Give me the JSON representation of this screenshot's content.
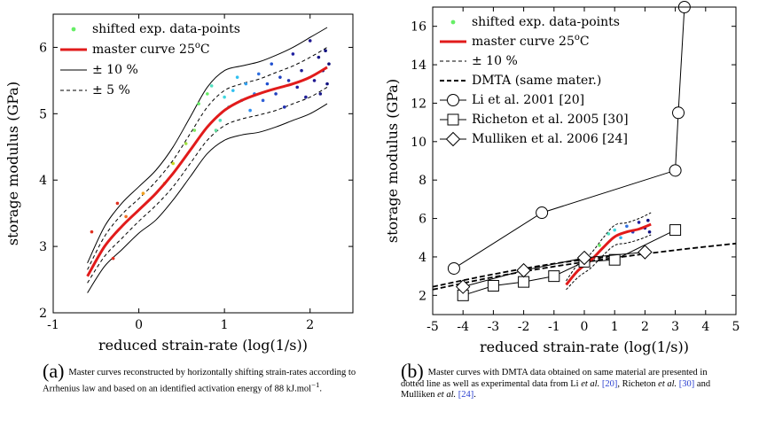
{
  "chart_data": [
    {
      "type": "scatter",
      "xlabel": "reduced strain-rate (log(1/s))",
      "ylabel": "storage modulus (GPa)",
      "xlim": [
        -1,
        2.5
      ],
      "ylim": [
        2,
        6.5
      ],
      "xticks": [
        "-1",
        "0",
        "1",
        "2"
      ],
      "yticks": [
        "2",
        "3",
        "4",
        "5",
        "6"
      ],
      "legend": [
        {
          "label": "shifted exp. data-points",
          "style": "points",
          "color": "#66ee66"
        },
        {
          "label": "master curve 25",
          "sup": "o",
          "unit": "C",
          "style": "line",
          "color": "#e11b1b"
        },
        {
          "label": "± 10 %",
          "style": "solid"
        },
        {
          "label": "± 5 %",
          "style": "dashed"
        }
      ],
      "master_curve": {
        "x": [
          -0.6,
          -0.4,
          -0.2,
          0.0,
          0.2,
          0.4,
          0.6,
          0.8,
          1.0,
          1.2,
          1.4,
          1.6,
          1.8,
          2.0,
          2.2
        ],
        "y": [
          2.55,
          3.0,
          3.3,
          3.55,
          3.8,
          4.1,
          4.45,
          4.8,
          5.05,
          5.2,
          5.3,
          5.38,
          5.45,
          5.55,
          5.7
        ]
      },
      "band_10": {
        "x": [
          -0.6,
          -0.4,
          -0.2,
          0.0,
          0.2,
          0.4,
          0.6,
          0.8,
          1.0,
          1.2,
          1.4,
          1.6,
          1.8,
          2.0,
          2.2
        ],
        "upper": [
          2.75,
          3.3,
          3.65,
          3.9,
          4.15,
          4.5,
          4.95,
          5.4,
          5.65,
          5.72,
          5.78,
          5.88,
          6.0,
          6.15,
          6.3
        ],
        "lower": [
          2.3,
          2.7,
          2.95,
          3.2,
          3.4,
          3.7,
          4.05,
          4.4,
          4.6,
          4.68,
          4.72,
          4.8,
          4.9,
          5.0,
          5.15
        ]
      },
      "band_5": {
        "x": [
          -0.6,
          -0.4,
          -0.2,
          0.0,
          0.2,
          0.4,
          0.6,
          0.8,
          1.0,
          1.2,
          1.4,
          1.6,
          1.8,
          2.0,
          2.2
        ],
        "upper": [
          2.65,
          3.15,
          3.48,
          3.72,
          3.98,
          4.3,
          4.7,
          5.1,
          5.35,
          5.45,
          5.52,
          5.62,
          5.72,
          5.85,
          6.0
        ],
        "lower": [
          2.45,
          2.85,
          3.12,
          3.38,
          3.62,
          3.9,
          4.25,
          4.6,
          4.82,
          4.92,
          4.98,
          5.05,
          5.15,
          5.25,
          5.4
        ]
      },
      "points": [
        {
          "x": -0.55,
          "y": 3.22,
          "c": "#e03020"
        },
        {
          "x": -0.3,
          "y": 2.82,
          "c": "#e03020"
        },
        {
          "x": -0.25,
          "y": 3.65,
          "c": "#e03020"
        },
        {
          "x": -0.15,
          "y": 3.45,
          "c": "#f07020"
        },
        {
          "x": 0.05,
          "y": 3.8,
          "c": "#f0a020"
        },
        {
          "x": 0.3,
          "y": 3.95,
          "c": "#e8c020"
        },
        {
          "x": 0.4,
          "y": 4.25,
          "c": "#c8d820"
        },
        {
          "x": 0.55,
          "y": 4.55,
          "c": "#a0e040"
        },
        {
          "x": 0.65,
          "y": 4.75,
          "c": "#80e860"
        },
        {
          "x": 0.7,
          "y": 5.15,
          "c": "#66ee66"
        },
        {
          "x": 0.8,
          "y": 5.3,
          "c": "#66ee66"
        },
        {
          "x": 0.9,
          "y": 4.75,
          "c": "#60e0a0"
        },
        {
          "x": 0.85,
          "y": 5.42,
          "c": "#50e0c0"
        },
        {
          "x": 0.95,
          "y": 4.9,
          "c": "#50e0c0"
        },
        {
          "x": 1.0,
          "y": 5.25,
          "c": "#40d8e0"
        },
        {
          "x": 1.05,
          "y": 5.1,
          "c": "#40d8e0"
        },
        {
          "x": 1.1,
          "y": 5.35,
          "c": "#30c0f0"
        },
        {
          "x": 1.15,
          "y": 5.55,
          "c": "#30c0f0"
        },
        {
          "x": 1.2,
          "y": 5.2,
          "c": "#30b0f0"
        },
        {
          "x": 1.25,
          "y": 5.45,
          "c": "#30a0f0"
        },
        {
          "x": 1.3,
          "y": 5.05,
          "c": "#3090f0"
        },
        {
          "x": 1.35,
          "y": 5.3,
          "c": "#3080e8"
        },
        {
          "x": 1.4,
          "y": 5.6,
          "c": "#3070e0"
        },
        {
          "x": 1.45,
          "y": 5.2,
          "c": "#3060d8"
        },
        {
          "x": 1.5,
          "y": 5.45,
          "c": "#2050d0"
        },
        {
          "x": 1.55,
          "y": 5.75,
          "c": "#2050d0"
        },
        {
          "x": 1.6,
          "y": 5.3,
          "c": "#2040c0"
        },
        {
          "x": 1.65,
          "y": 5.55,
          "c": "#2040c0"
        },
        {
          "x": 1.7,
          "y": 5.1,
          "c": "#2030b0"
        },
        {
          "x": 1.75,
          "y": 5.5,
          "c": "#2030b0"
        },
        {
          "x": 1.8,
          "y": 5.9,
          "c": "#2020a0"
        },
        {
          "x": 1.85,
          "y": 5.4,
          "c": "#2020a0"
        },
        {
          "x": 1.9,
          "y": 5.65,
          "c": "#202098"
        },
        {
          "x": 1.95,
          "y": 5.25,
          "c": "#202098"
        },
        {
          "x": 2.0,
          "y": 6.1,
          "c": "#201890"
        },
        {
          "x": 2.05,
          "y": 5.5,
          "c": "#201890"
        },
        {
          "x": 2.1,
          "y": 5.85,
          "c": "#181888"
        },
        {
          "x": 2.12,
          "y": 5.3,
          "c": "#181888"
        },
        {
          "x": 2.15,
          "y": 5.65,
          "c": "#101080"
        },
        {
          "x": 2.18,
          "y": 5.95,
          "c": "#101080"
        },
        {
          "x": 2.2,
          "y": 5.45,
          "c": "#101080"
        },
        {
          "x": 2.22,
          "y": 5.75,
          "c": "#101078"
        }
      ]
    },
    {
      "type": "line",
      "xlabel": "reduced strain-rate (log(1/s))",
      "ylabel": "storage modulus (GPa)",
      "xlim": [
        -5,
        5
      ],
      "ylim": [
        1,
        17
      ],
      "xticks": [
        "-5",
        "-4",
        "-3",
        "-2",
        "-1",
        "0",
        "1",
        "2",
        "3",
        "4",
        "5"
      ],
      "yticks": [
        "2",
        "4",
        "6",
        "8",
        "10",
        "12",
        "14",
        "16"
      ],
      "legend": [
        {
          "label": "shifted exp. data-points",
          "style": "points",
          "color": "#66ee66"
        },
        {
          "label": "master curve 25",
          "sup": "o",
          "unit": "C",
          "style": "line",
          "color": "#e11b1b"
        },
        {
          "label": "± 10 %",
          "style": "dashed-thin"
        },
        {
          "label": "DMTA (same mater.)",
          "style": "dashed-thick"
        },
        {
          "label": "Li et al. 2001 [20]",
          "style": "circle"
        },
        {
          "label": "Richeton et al. 2005 [30]",
          "style": "square"
        },
        {
          "label": "Mulliken et al. 2006 [24]",
          "style": "diamond"
        }
      ],
      "series": [
        {
          "name": "Li et al. 2001 [20]",
          "marker": "circle",
          "x": [
            -4.3,
            -1.4,
            3.0,
            3.1,
            3.3
          ],
          "y": [
            3.4,
            6.3,
            8.5,
            11.5,
            17.0
          ]
        },
        {
          "name": "Richeton et al. 2005 [30]",
          "marker": "square",
          "x": [
            -4.0,
            -3.0,
            -2.0,
            -1.0,
            0.0,
            1.0,
            3.0
          ],
          "y": [
            2.0,
            2.5,
            2.7,
            3.0,
            3.75,
            3.85,
            5.4
          ]
        },
        {
          "name": "Mulliken et al. 2006 [24]",
          "marker": "diamond",
          "x": [
            -4.0,
            -2.0,
            0.0,
            2.0
          ],
          "y": [
            2.45,
            3.3,
            3.95,
            4.25
          ]
        },
        {
          "name": "DMTA (same mater.)",
          "marker": "none",
          "x": [
            -5.0,
            -3.0,
            -1.0,
            1.0,
            3.0,
            5.0
          ],
          "y": [
            2.3,
            2.95,
            3.5,
            3.95,
            4.35,
            4.7
          ]
        },
        {
          "name": "DMTA-alt",
          "marker": "none",
          "x": [
            -5.0,
            -3.0,
            -1.0,
            1.0
          ],
          "y": [
            2.45,
            3.1,
            3.65,
            4.05
          ]
        }
      ],
      "master_curve": {
        "x": [
          -0.6,
          -0.2,
          0.2,
          0.6,
          1.0,
          1.4,
          1.8,
          2.2
        ],
        "y": [
          2.55,
          3.3,
          3.8,
          4.45,
          5.05,
          5.3,
          5.45,
          5.7
        ]
      },
      "band_10": {
        "x": [
          -0.6,
          -0.2,
          0.2,
          0.6,
          1.0,
          1.4,
          1.8,
          2.2
        ],
        "upper": [
          2.75,
          3.65,
          4.15,
          4.95,
          5.65,
          5.78,
          6.0,
          6.3
        ],
        "lower": [
          2.3,
          2.95,
          3.4,
          4.05,
          4.6,
          4.72,
          4.9,
          5.15
        ]
      },
      "points": [
        {
          "x": 0.5,
          "y": 4.6,
          "c": "#66ee66"
        },
        {
          "x": 0.8,
          "y": 5.2,
          "c": "#50e0c0"
        },
        {
          "x": 1.0,
          "y": 5.4,
          "c": "#40d8e0"
        },
        {
          "x": 1.2,
          "y": 5.0,
          "c": "#30b0f0"
        },
        {
          "x": 1.4,
          "y": 5.6,
          "c": "#3070e0"
        },
        {
          "x": 1.6,
          "y": 5.3,
          "c": "#2040c0"
        },
        {
          "x": 1.8,
          "y": 5.8,
          "c": "#2020a0"
        },
        {
          "x": 2.0,
          "y": 5.5,
          "c": "#201890"
        },
        {
          "x": 2.1,
          "y": 5.9,
          "c": "#101080"
        },
        {
          "x": 2.15,
          "y": 5.3,
          "c": "#101080"
        }
      ]
    }
  ],
  "captions": {
    "a": {
      "letter": "(a)",
      "text": "Master curves reconstructed by horizontally shifting strain-rates according to Arrhenius law and based on an identified activation energy of 88 kJ.mol",
      "sup": "−1",
      "end": "."
    },
    "b": {
      "letter": "(b)",
      "text1": "Master curves with DMTA data obtained on same material are presented in dotted line as well as experimental data from Li ",
      "etal": "et al.",
      "r20": "[20]",
      "mid1": ", Richeton ",
      "r30": "[30]",
      "mid2": " and Mulliken ",
      "r24": "[24]",
      "end": "."
    }
  }
}
